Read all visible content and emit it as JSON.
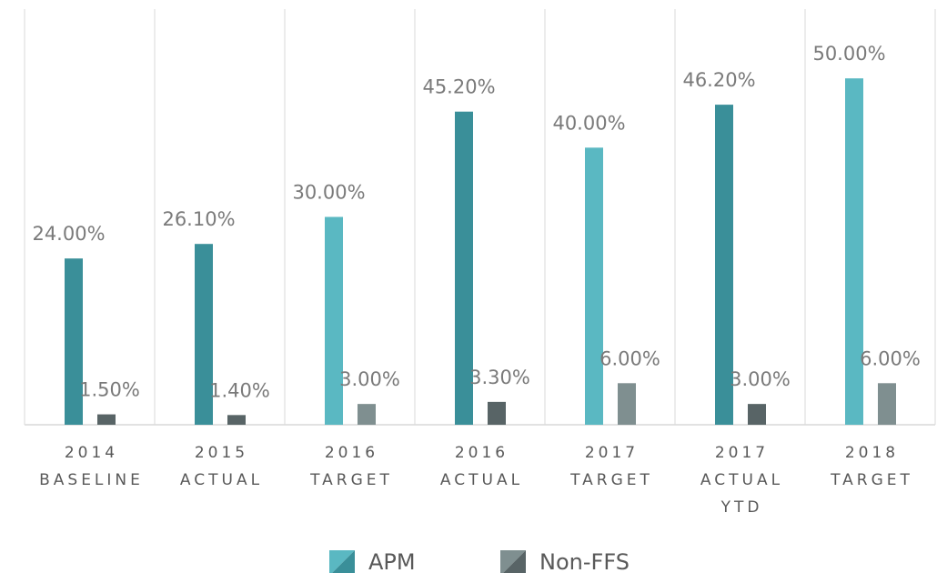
{
  "chart_data": {
    "type": "bar",
    "categories": [
      [
        "2014",
        "BASELINE"
      ],
      [
        "2015",
        "ACTUAL"
      ],
      [
        "2016",
        "TARGET"
      ],
      [
        "2016",
        "ACTUAL"
      ],
      [
        "2017",
        "TARGET"
      ],
      [
        "2017",
        "ACTUAL",
        "YTD"
      ],
      [
        "2018",
        "TARGET"
      ]
    ],
    "series": [
      {
        "name": "APM",
        "colors": [
          "#3a8f99",
          "#3a8f99",
          "#5ab8c2",
          "#3a8f99",
          "#5ab8c2",
          "#3a8f99",
          "#5ab8c2"
        ],
        "values": [
          24,
          26.1,
          30,
          45.2,
          40,
          46.2,
          50
        ],
        "value_labels": [
          "24.00%",
          "26.10%",
          "30.00%",
          "45.20%",
          "40.00%",
          "46.20%",
          "50.00%"
        ]
      },
      {
        "name": "Non-FFS",
        "colors": [
          "#586466",
          "#586466",
          "#7f8f90",
          "#586466",
          "#7f8f90",
          "#586466",
          "#7f8f90"
        ],
        "values": [
          1.5,
          1.4,
          3,
          3.3,
          6,
          3,
          6
        ],
        "value_labels": [
          "1.50%",
          "1.40%",
          "3.00%",
          "3.30%",
          "6.00%",
          "3.00%",
          "6.00%"
        ]
      }
    ],
    "ylim": [
      0,
      60
    ],
    "grid": true,
    "legend": "bottom"
  }
}
